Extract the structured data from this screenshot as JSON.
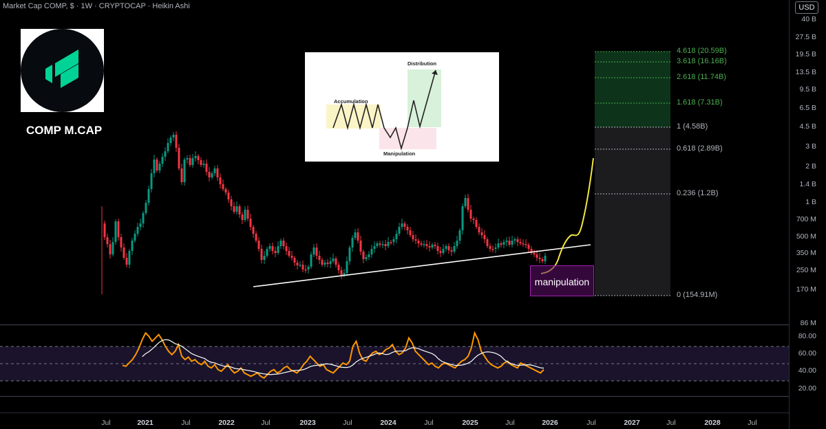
{
  "header": {
    "title": "Market Cap COMP, $ · 1W · CRYPTOCAP · Heikin Ashi",
    "currency_button": "USD"
  },
  "logo": {
    "ticker": "COMP M.CAP",
    "brand_color": "#00d395"
  },
  "inset": {
    "accumulation": "Accumulation",
    "manipulation": "Manipulation",
    "distribution": "Distribution"
  },
  "annotation": {
    "manipulation_box": "manipulation"
  },
  "chart_data": {
    "type": "candlestick",
    "scale": "log",
    "y_axis_labels": [
      "40 B",
      "27.5 B",
      "19.5 B",
      "13.5 B",
      "9.5 B",
      "6.5 B",
      "4.5 B",
      "3 B",
      "2 B",
      "1.4 B",
      "1 B",
      "700 M",
      "500 M",
      "350 M",
      "250 M",
      "170 M",
      "86 M"
    ],
    "x_axis_labels": [
      "Jul",
      "2021",
      "Jul",
      "2022",
      "Jul",
      "2023",
      "Jul",
      "2024",
      "Jul",
      "2025",
      "Jul",
      "2026",
      "Jul",
      "2027",
      "Jul",
      "2028",
      "Jul"
    ],
    "colors": {
      "up": "#089981",
      "down": "#f23645",
      "projection": "#f5e642",
      "trendline": "#ffffff",
      "rsi": "#ff9800",
      "rsi_ma": "#ffffff"
    },
    "fib_levels": [
      {
        "label": "4.618 (20.59B)",
        "color": "#4caf50"
      },
      {
        "label": "3.618 (16.16B)",
        "color": "#4caf50"
      },
      {
        "label": "2.618 (11.74B)",
        "color": "#4caf50"
      },
      {
        "label": "1.618 (7.31B)",
        "color": "#4caf50"
      },
      {
        "label": "1 (4.58B)",
        "color": "#b2b5be"
      },
      {
        "label": "0.618 (2.89B)",
        "color": "#b2b5be"
      },
      {
        "label": "0.236 (1.2B)",
        "color": "#b2b5be"
      },
      {
        "label": "0 (154.91M)",
        "color": "#b2b5be"
      }
    ],
    "rsi": {
      "axis_labels": [
        "80.00",
        "60.00",
        "40.00",
        "20.00"
      ],
      "levels": [
        70,
        50,
        30
      ]
    }
  }
}
